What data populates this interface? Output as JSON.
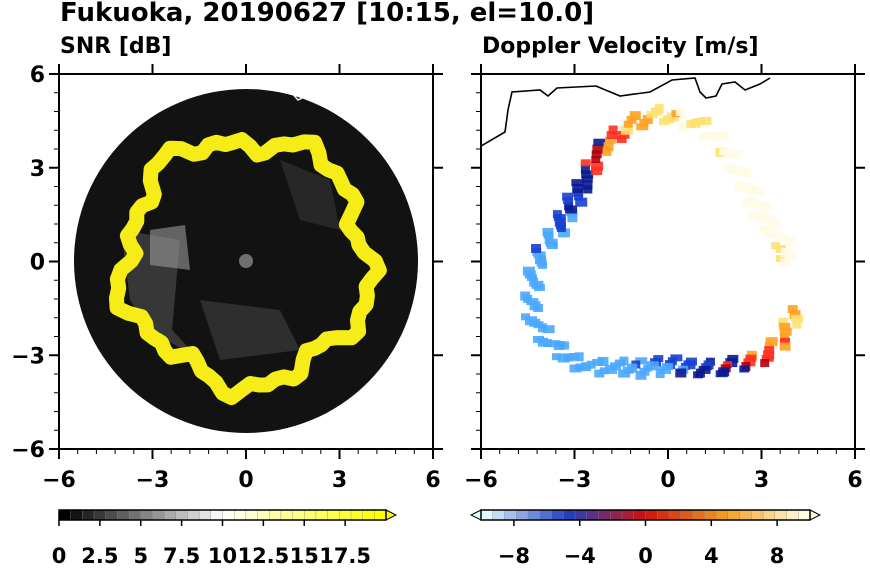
{
  "figure_title": "Fukuoka, 20190627 [10:15, el=10.0]",
  "chart_data": [
    {
      "type": "heatmap",
      "title": "SNR [dB]",
      "x_ticks": [
        "−6",
        "−3",
        "0",
        "3",
        "6"
      ],
      "y_ticks": [
        "6",
        "3",
        "0",
        "−3",
        "−6"
      ],
      "xlim": [
        -6,
        6
      ],
      "ylim": [
        -6,
        6
      ],
      "colorbar": {
        "ticks": [
          "0",
          "2.5",
          "5",
          "7.5",
          "10",
          "12.5",
          "15",
          "17.5"
        ],
        "range": [
          0,
          20
        ],
        "colors": [
          "#000000",
          "#ffffff",
          "#ffff00"
        ]
      },
      "ring_color": "#f5ec18",
      "background_color": "#111111"
    },
    {
      "type": "heatmap",
      "title": "Doppler Velocity [m/s]",
      "x_ticks": [
        "−6",
        "−3",
        "0",
        "3",
        "6"
      ],
      "y_ticks": [
        "6",
        "3",
        "0",
        "−3",
        "−6"
      ],
      "xlim": [
        -6,
        6
      ],
      "ylim": [
        -6,
        6
      ],
      "colorbar": {
        "ticks": [
          "−8",
          "−4",
          "0",
          "4",
          "8"
        ],
        "range": [
          -10,
          10
        ],
        "colors": [
          "#e0f8ff",
          "#2040c0",
          "#d01010",
          "#f0a020",
          "#fffbe0"
        ]
      }
    }
  ]
}
